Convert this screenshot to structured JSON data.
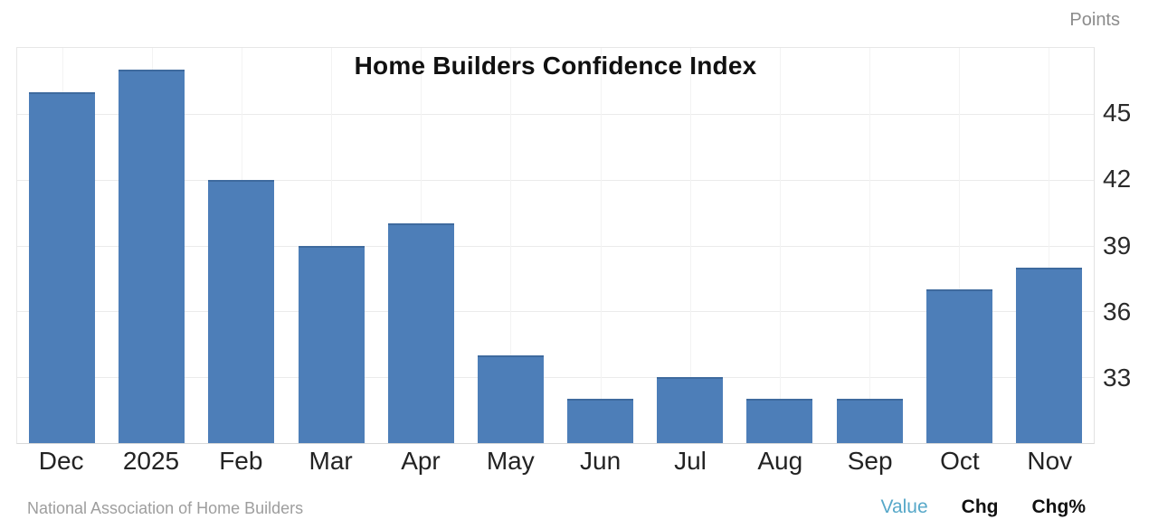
{
  "chart": {
    "points_label": "Points"
  },
  "footer": {
    "source": "National Association of Home Builders",
    "tabs": [
      {
        "label": "Value",
        "active": true
      },
      {
        "label": "Chg",
        "active": false
      },
      {
        "label": "Chg%",
        "active": false
      }
    ]
  },
  "colors": {
    "bar": "#4d7eb8",
    "active_tab": "#57a8c9",
    "inactive_tab": "#111111"
  },
  "chart_data": {
    "type": "bar",
    "title": "Home Builders Confidence Index",
    "categories": [
      "Dec",
      "2025",
      "Feb",
      "Mar",
      "Apr",
      "May",
      "Jun",
      "Jul",
      "Aug",
      "Sep",
      "Oct",
      "Nov"
    ],
    "values": [
      46,
      47,
      42,
      39,
      40,
      34,
      32,
      33,
      32,
      32,
      37,
      38
    ],
    "xlabel": "",
    "ylabel": "Points",
    "ylim": [
      30,
      48
    ],
    "yticks": [
      33,
      36,
      39,
      42,
      45
    ],
    "y_axis_side": "right",
    "grid": true,
    "legend": false,
    "bar_color": "#4d7eb8"
  }
}
